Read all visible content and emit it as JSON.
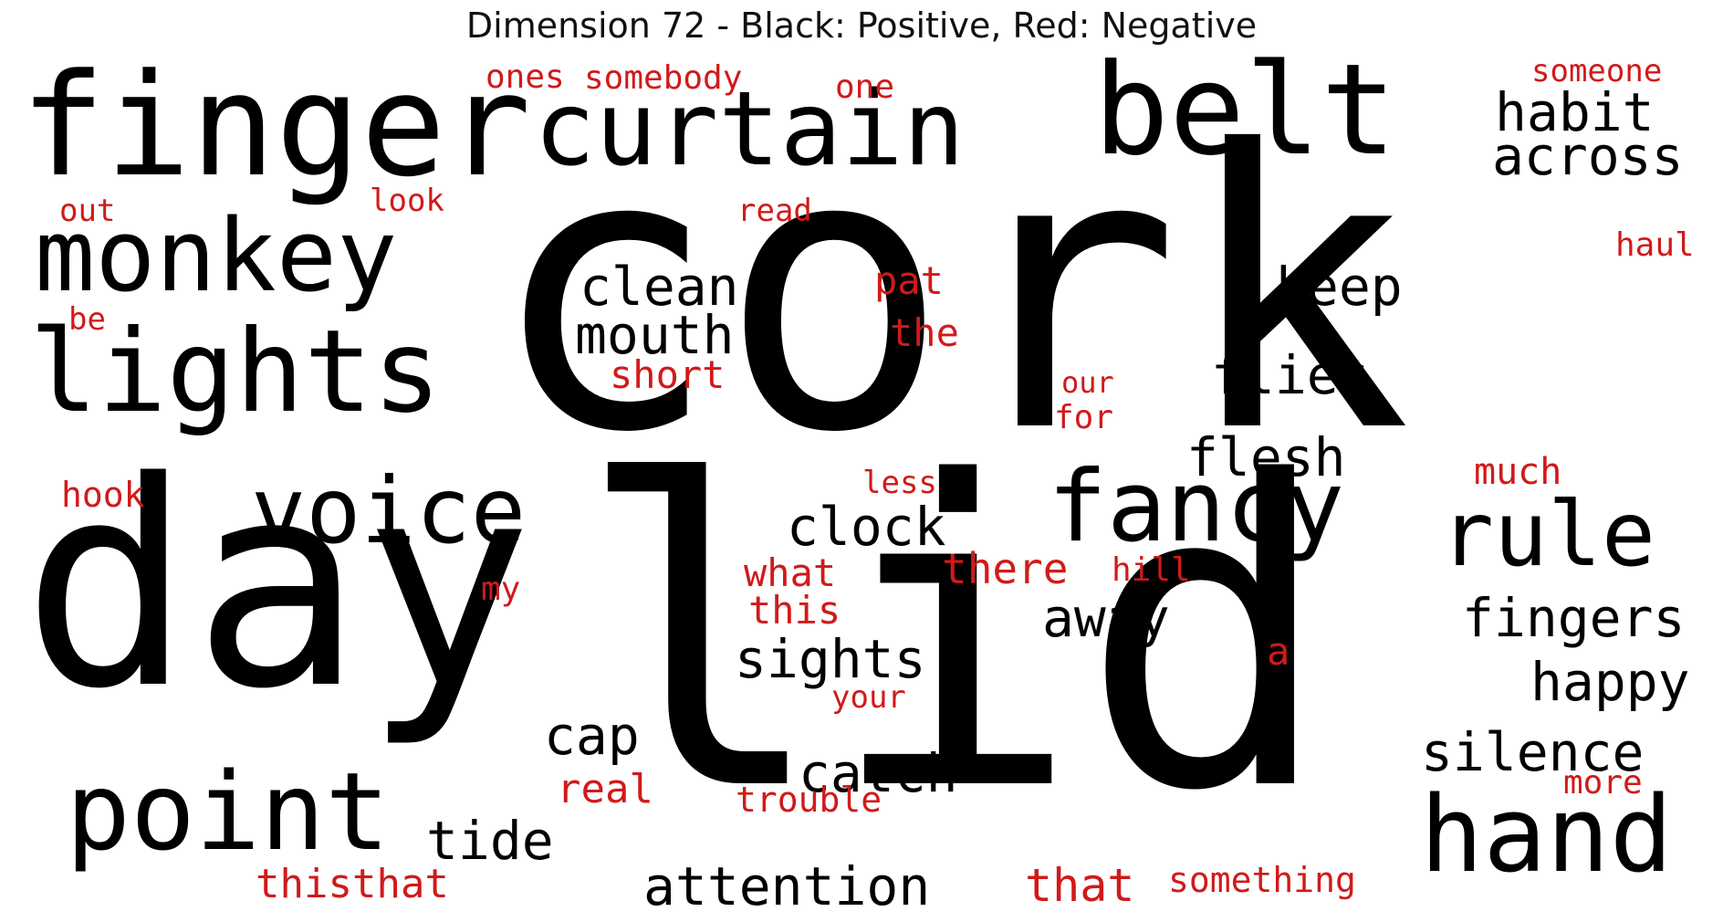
{
  "title": "Dimension 72 - Black: Positive, Red: Negative",
  "colors": {
    "positive": "#000000",
    "negative": "#d11a1a"
  },
  "words": [
    {
      "text": "cork",
      "sign": "positive"
    },
    {
      "text": "lid",
      "sign": "positive"
    },
    {
      "text": "day",
      "sign": "positive"
    },
    {
      "text": "finger",
      "sign": "positive"
    },
    {
      "text": "curtain",
      "sign": "positive"
    },
    {
      "text": "belt",
      "sign": "positive"
    },
    {
      "text": "monkey",
      "sign": "positive"
    },
    {
      "text": "lights",
      "sign": "positive"
    },
    {
      "text": "voice",
      "sign": "positive"
    },
    {
      "text": "fancy",
      "sign": "positive"
    },
    {
      "text": "rule",
      "sign": "positive"
    },
    {
      "text": "point",
      "sign": "positive"
    },
    {
      "text": "hand",
      "sign": "positive"
    },
    {
      "text": "habit",
      "sign": "positive"
    },
    {
      "text": "across",
      "sign": "positive"
    },
    {
      "text": "keep",
      "sign": "positive"
    },
    {
      "text": "clean",
      "sign": "positive"
    },
    {
      "text": "mouth",
      "sign": "positive"
    },
    {
      "text": "flies",
      "sign": "positive"
    },
    {
      "text": "flesh",
      "sign": "positive"
    },
    {
      "text": "clock",
      "sign": "positive"
    },
    {
      "text": "away",
      "sign": "positive"
    },
    {
      "text": "fingers",
      "sign": "positive"
    },
    {
      "text": "sights",
      "sign": "positive"
    },
    {
      "text": "happy",
      "sign": "positive"
    },
    {
      "text": "cap",
      "sign": "positive"
    },
    {
      "text": "catch",
      "sign": "positive"
    },
    {
      "text": "silence",
      "sign": "positive"
    },
    {
      "text": "tide",
      "sign": "positive"
    },
    {
      "text": "attention",
      "sign": "positive"
    },
    {
      "text": "ones",
      "sign": "negative"
    },
    {
      "text": "somebody",
      "sign": "negative"
    },
    {
      "text": "one",
      "sign": "negative"
    },
    {
      "text": "someone",
      "sign": "negative"
    },
    {
      "text": "out",
      "sign": "negative"
    },
    {
      "text": "look",
      "sign": "negative"
    },
    {
      "text": "read",
      "sign": "negative"
    },
    {
      "text": "haul",
      "sign": "negative"
    },
    {
      "text": "be",
      "sign": "negative"
    },
    {
      "text": "pat",
      "sign": "negative"
    },
    {
      "text": "the",
      "sign": "negative"
    },
    {
      "text": "short",
      "sign": "negative"
    },
    {
      "text": "our",
      "sign": "negative"
    },
    {
      "text": "for",
      "sign": "negative"
    },
    {
      "text": "hook",
      "sign": "negative"
    },
    {
      "text": "less",
      "sign": "negative"
    },
    {
      "text": "much",
      "sign": "negative"
    },
    {
      "text": "what",
      "sign": "negative"
    },
    {
      "text": "there",
      "sign": "negative"
    },
    {
      "text": "hill",
      "sign": "negative"
    },
    {
      "text": "my",
      "sign": "negative"
    },
    {
      "text": "this",
      "sign": "negative"
    },
    {
      "text": "a",
      "sign": "negative"
    },
    {
      "text": "your",
      "sign": "negative"
    },
    {
      "text": "real",
      "sign": "negative"
    },
    {
      "text": "trouble",
      "sign": "negative"
    },
    {
      "text": "more",
      "sign": "negative"
    },
    {
      "text": "thisthat",
      "sign": "negative"
    },
    {
      "text": "that",
      "sign": "negative"
    },
    {
      "text": "something",
      "sign": "negative"
    }
  ]
}
